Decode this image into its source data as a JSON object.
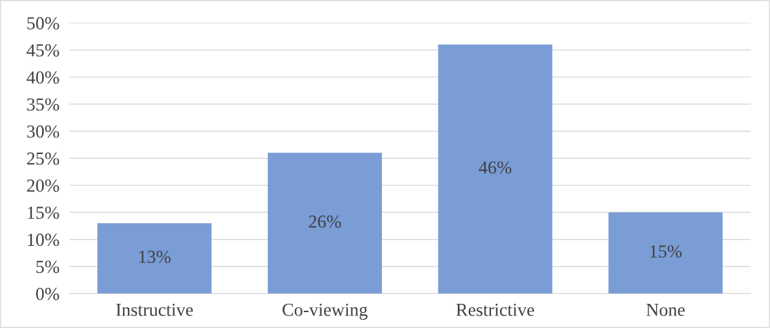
{
  "chart_data": {
    "type": "bar",
    "categories": [
      "Instructive",
      "Co-viewing",
      "Restrictive",
      "None"
    ],
    "values": [
      13,
      26,
      46,
      15
    ],
    "value_labels": [
      "13%",
      "26%",
      "46%",
      "15%"
    ],
    "color": "#7a9dd6",
    "ylim": [
      0,
      50
    ],
    "yticks": [
      {
        "value": 0,
        "label": "0%"
      },
      {
        "value": 5,
        "label": "5%"
      },
      {
        "value": 10,
        "label": "10%"
      },
      {
        "value": 15,
        "label": "15%"
      },
      {
        "value": 20,
        "label": "20%"
      },
      {
        "value": 25,
        "label": "25%"
      },
      {
        "value": 30,
        "label": "30%"
      },
      {
        "value": 35,
        "label": "35%"
      },
      {
        "value": 40,
        "label": "40%"
      },
      {
        "value": 45,
        "label": "45%"
      },
      {
        "value": 50,
        "label": "50%"
      }
    ],
    "grid": "y",
    "legend": false
  }
}
